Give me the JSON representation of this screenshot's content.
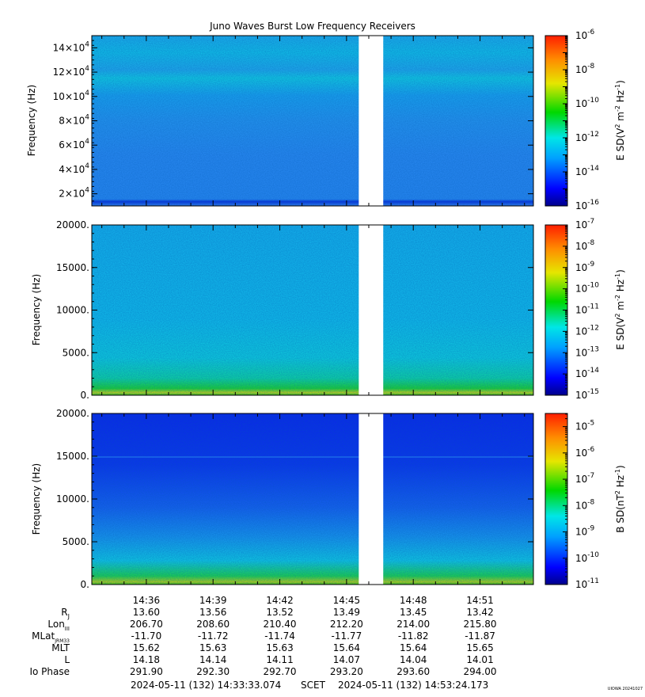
{
  "title": "Juno Waves Burst Low Frequency Receivers",
  "watermark": "UIOWA 20241027",
  "colors": {
    "gap": "#ffffff",
    "axis": "#000000"
  },
  "chart_data": [
    {
      "type": "heatmap",
      "name": "panel-1",
      "ylabel": "Frequency (Hz)",
      "ylim": [
        10000,
        150000
      ],
      "y_ticks": [
        {
          "value": 20000,
          "mant": "2×10",
          "exp": "4"
        },
        {
          "value": 40000,
          "mant": "4×10",
          "exp": "4"
        },
        {
          "value": 60000,
          "mant": "6×10",
          "exp": "4"
        },
        {
          "value": 80000,
          "mant": "8×10",
          "exp": "4"
        },
        {
          "value": 100000,
          "mant": "10×10",
          "exp": "4"
        },
        {
          "value": 120000,
          "mant": "12×10",
          "exp": "4"
        },
        {
          "value": 140000,
          "mant": "14×10",
          "exp": "4"
        }
      ],
      "colorbar": {
        "label": "E SD(V^2 m^-2 Hz^-1)",
        "scale": "log",
        "range_exp": [
          -16,
          -6
        ],
        "ticks": [
          -16,
          -14,
          -12,
          -10,
          -8,
          -6
        ]
      }
    },
    {
      "type": "heatmap",
      "name": "panel-2",
      "ylabel": "Frequency (Hz)",
      "ylim": [
        0,
        20000
      ],
      "y_ticks": [
        {
          "value": 0,
          "label": "0."
        },
        {
          "value": 5000,
          "label": "5000."
        },
        {
          "value": 10000,
          "label": "10000."
        },
        {
          "value": 15000,
          "label": "15000."
        },
        {
          "value": 20000,
          "label": "20000."
        }
      ],
      "colorbar": {
        "label": "E SD(V^2 m^-2 Hz^-1)",
        "scale": "log",
        "range_exp": [
          -15,
          -7
        ],
        "ticks": [
          -15,
          -14,
          -13,
          -12,
          -11,
          -10,
          -9,
          -8,
          -7
        ]
      }
    },
    {
      "type": "heatmap",
      "name": "panel-3",
      "ylabel": "Frequency (Hz)",
      "ylim": [
        0,
        20000
      ],
      "y_ticks": [
        {
          "value": 0,
          "label": "0."
        },
        {
          "value": 5000,
          "label": "5000."
        },
        {
          "value": 10000,
          "label": "10000."
        },
        {
          "value": 15000,
          "label": "15000."
        },
        {
          "value": 20000,
          "label": "20000."
        }
      ],
      "colorbar": {
        "label": "B SD(nT^2 Hz^-1)",
        "scale": "log",
        "range_exp": [
          -11,
          -4.5
        ],
        "ticks": [
          -11,
          -10,
          -9,
          -8,
          -7,
          -6,
          -5
        ]
      }
    }
  ],
  "time_axis": {
    "start_min": 873.55,
    "end_min": 893.4,
    "gap_min": [
      885.55,
      886.65
    ],
    "ticks": [
      {
        "min": 876,
        "label": "14:36"
      },
      {
        "min": 879,
        "label": "14:39"
      },
      {
        "min": 882,
        "label": "14:42"
      },
      {
        "min": 885,
        "label": "14:45"
      },
      {
        "min": 888,
        "label": "14:48"
      },
      {
        "min": 891,
        "label": "14:51"
      }
    ]
  },
  "ephemeris": {
    "rows": [
      {
        "label": "R",
        "sub": "J",
        "values": [
          "13.60",
          "13.56",
          "13.52",
          "13.49",
          "13.45",
          "13.42"
        ]
      },
      {
        "label": "Lon",
        "sub": "III",
        "values": [
          "206.70",
          "208.60",
          "210.40",
          "212.20",
          "214.00",
          "215.80"
        ]
      },
      {
        "label": "MLat",
        "sub": "JRM33",
        "values": [
          "-11.70",
          "-11.72",
          "-11.74",
          "-11.77",
          "-11.82",
          "-11.87"
        ]
      },
      {
        "label": "MLT",
        "sub": "",
        "values": [
          "15.62",
          "15.63",
          "15.63",
          "15.64",
          "15.64",
          "15.65"
        ]
      },
      {
        "label": "L",
        "sub": "",
        "values": [
          "14.18",
          "14.14",
          "14.11",
          "14.07",
          "14.04",
          "14.01"
        ]
      },
      {
        "label": "Io Phase",
        "sub": "",
        "values": [
          "291.90",
          "292.30",
          "292.70",
          "293.20",
          "293.60",
          "294.00"
        ]
      }
    ]
  },
  "footer": {
    "start": "2024-05-11 (132) 14:33:33.074",
    "mid": "SCET",
    "end": "2024-05-11 (132) 14:53:24.173"
  }
}
